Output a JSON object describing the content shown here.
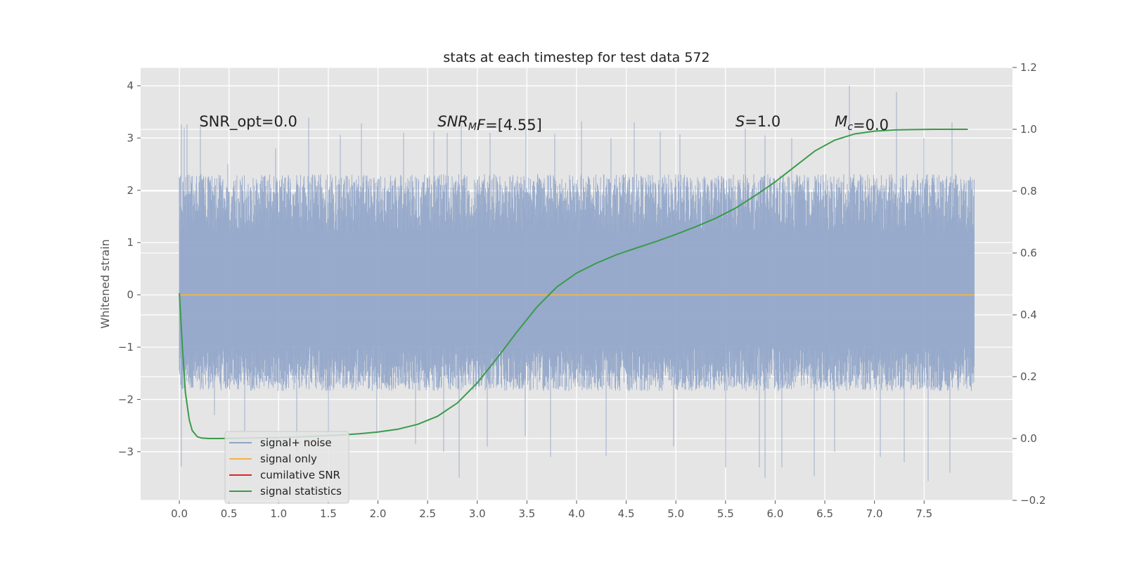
{
  "chart_data": {
    "type": "line",
    "title": "stats at each timestep for test data 572",
    "xlabel": "",
    "ylabel": "Whitened strain",
    "y2label": "",
    "xlim": [
      -0.39,
      8.39
    ],
    "ylim": [
      -3.93,
      4.35
    ],
    "y2lim": [
      -0.2,
      1.2
    ],
    "x_ticks": [
      0.0,
      0.5,
      1.0,
      1.5,
      2.0,
      2.5,
      3.0,
      3.5,
      4.0,
      4.5,
      5.0,
      5.5,
      6.0,
      6.5,
      7.0,
      7.5
    ],
    "x_tick_labels": [
      "0.0",
      "0.5",
      "1.0",
      "1.5",
      "2.0",
      "2.5",
      "3.0",
      "3.5",
      "4.0",
      "4.5",
      "5.0",
      "5.5",
      "6.0",
      "6.5",
      "7.0",
      "7.5"
    ],
    "y_ticks": [
      4,
      3,
      2,
      1,
      0,
      -1,
      -2,
      -3
    ],
    "y_tick_labels": [
      "4",
      "3",
      "2",
      "1",
      "0",
      "−1",
      "−2",
      "−3"
    ],
    "y2_ticks": [
      1.2,
      1.0,
      0.8,
      0.6,
      0.4,
      0.2,
      0.0,
      -0.2
    ],
    "y2_tick_labels": [
      "1.2",
      "1.0",
      "0.8",
      "0.6",
      "0.4",
      "0.2",
      "0.0",
      "−0.2"
    ],
    "grid": true,
    "legend_position": "lower-left",
    "annotations": [
      {
        "parts": [
          {
            "text": "SNR_opt=0.0",
            "italic": false
          }
        ],
        "x": 0.2,
        "y": 3.22
      },
      {
        "parts": [
          {
            "text": "SNR",
            "italic": true
          },
          {
            "text": "M",
            "italic": true,
            "sub": true
          },
          {
            "text": "F",
            "italic": true
          },
          {
            "text": "=[4.55]",
            "italic": false
          }
        ],
        "x": 2.6,
        "y": 3.22
      },
      {
        "parts": [
          {
            "text": "S",
            "italic": true
          },
          {
            "text": "=1.0",
            "italic": false
          }
        ],
        "x": 5.6,
        "y": 3.22
      },
      {
        "parts": [
          {
            "text": "M",
            "italic": true
          },
          {
            "text": "c",
            "italic": true,
            "sub": true
          },
          {
            "text": "=0.0",
            "italic": false
          }
        ],
        "x": 6.6,
        "y": 3.22
      }
    ],
    "series": [
      {
        "name": "signal+ noise",
        "color": "#8ea3c8",
        "axis": "left",
        "kind": "dense-noise",
        "x_range": [
          0.0,
          8.0
        ],
        "typical_envelope": [
          -1.6,
          2.1
        ],
        "peaks": [
          [
            0.02,
            3.26
          ],
          [
            0.05,
            3.2
          ],
          [
            0.08,
            3.26
          ],
          [
            0.21,
            3.22
          ],
          [
            0.49,
            2.5
          ],
          [
            0.97,
            2.8
          ],
          [
            1.3,
            3.39
          ],
          [
            1.62,
            3.06
          ],
          [
            1.83,
            3.28
          ],
          [
            2.26,
            3.1
          ],
          [
            2.56,
            3.13
          ],
          [
            2.7,
            3.1
          ],
          [
            2.84,
            3.26
          ],
          [
            3.13,
            3.1
          ],
          [
            3.49,
            3.18
          ],
          [
            3.78,
            3.08
          ],
          [
            4.05,
            3.32
          ],
          [
            4.35,
            3.0
          ],
          [
            4.58,
            3.3
          ],
          [
            4.84,
            3.12
          ],
          [
            5.04,
            3.07
          ],
          [
            5.7,
            3.18
          ],
          [
            5.9,
            3.05
          ],
          [
            6.17,
            3.0
          ],
          [
            6.75,
            4.0
          ],
          [
            7.22,
            3.88
          ],
          [
            7.5,
            3.0
          ],
          [
            7.78,
            3.3
          ]
        ],
        "troughs": [
          [
            0.02,
            -3.28
          ],
          [
            0.35,
            -2.3
          ],
          [
            0.66,
            -2.6
          ],
          [
            1.18,
            -3.0
          ],
          [
            1.5,
            -2.7
          ],
          [
            1.99,
            -2.65
          ],
          [
            2.38,
            -2.85
          ],
          [
            2.66,
            -3.0
          ],
          [
            2.82,
            -3.5
          ],
          [
            3.1,
            -2.9
          ],
          [
            3.48,
            -2.7
          ],
          [
            3.74,
            -3.1
          ],
          [
            4.3,
            -3.08
          ],
          [
            4.98,
            -2.9
          ],
          [
            5.5,
            -3.3
          ],
          [
            5.84,
            -3.3
          ],
          [
            5.9,
            -3.5
          ],
          [
            6.07,
            -3.3
          ],
          [
            6.39,
            -3.47
          ],
          [
            6.6,
            -3.0
          ],
          [
            7.06,
            -3.1
          ],
          [
            7.3,
            -3.2
          ],
          [
            7.54,
            -3.56
          ],
          [
            7.76,
            -3.4
          ]
        ]
      },
      {
        "name": "signal only",
        "color": "#f0b34a",
        "axis": "left",
        "x": [
          0.0,
          8.0
        ],
        "y": [
          0.0,
          0.0
        ]
      },
      {
        "name": "cumilative SNR",
        "color": "#d62728",
        "axis": "left",
        "x": [],
        "y": []
      },
      {
        "name": "signal statistics",
        "color": "#3a9b4a",
        "axis": "right",
        "x": [
          0.0,
          0.03,
          0.06,
          0.1,
          0.13,
          0.18,
          0.22,
          0.3,
          0.4,
          0.6,
          0.8,
          1.0,
          1.2,
          1.4,
          1.6,
          1.8,
          2.0,
          2.2,
          2.4,
          2.6,
          2.8,
          3.0,
          3.2,
          3.4,
          3.6,
          3.8,
          4.0,
          4.2,
          4.4,
          4.6,
          4.8,
          5.0,
          5.2,
          5.4,
          5.6,
          5.8,
          6.0,
          6.2,
          6.4,
          6.6,
          6.8,
          7.0,
          7.2,
          7.4,
          7.6,
          7.8,
          7.94
        ],
        "y": [
          0.47,
          0.3,
          0.15,
          0.06,
          0.026,
          0.006,
          0.0015,
          0.0,
          0.0,
          0.001,
          0.002,
          0.003,
          0.005,
          0.008,
          0.011,
          0.015,
          0.021,
          0.03,
          0.046,
          0.072,
          0.115,
          0.18,
          0.26,
          0.345,
          0.425,
          0.49,
          0.535,
          0.567,
          0.594,
          0.616,
          0.637,
          0.66,
          0.685,
          0.712,
          0.745,
          0.786,
          0.83,
          0.88,
          0.93,
          0.965,
          0.985,
          0.994,
          0.998,
          0.999,
          1.0,
          1.0,
          1.0
        ]
      }
    ]
  }
}
